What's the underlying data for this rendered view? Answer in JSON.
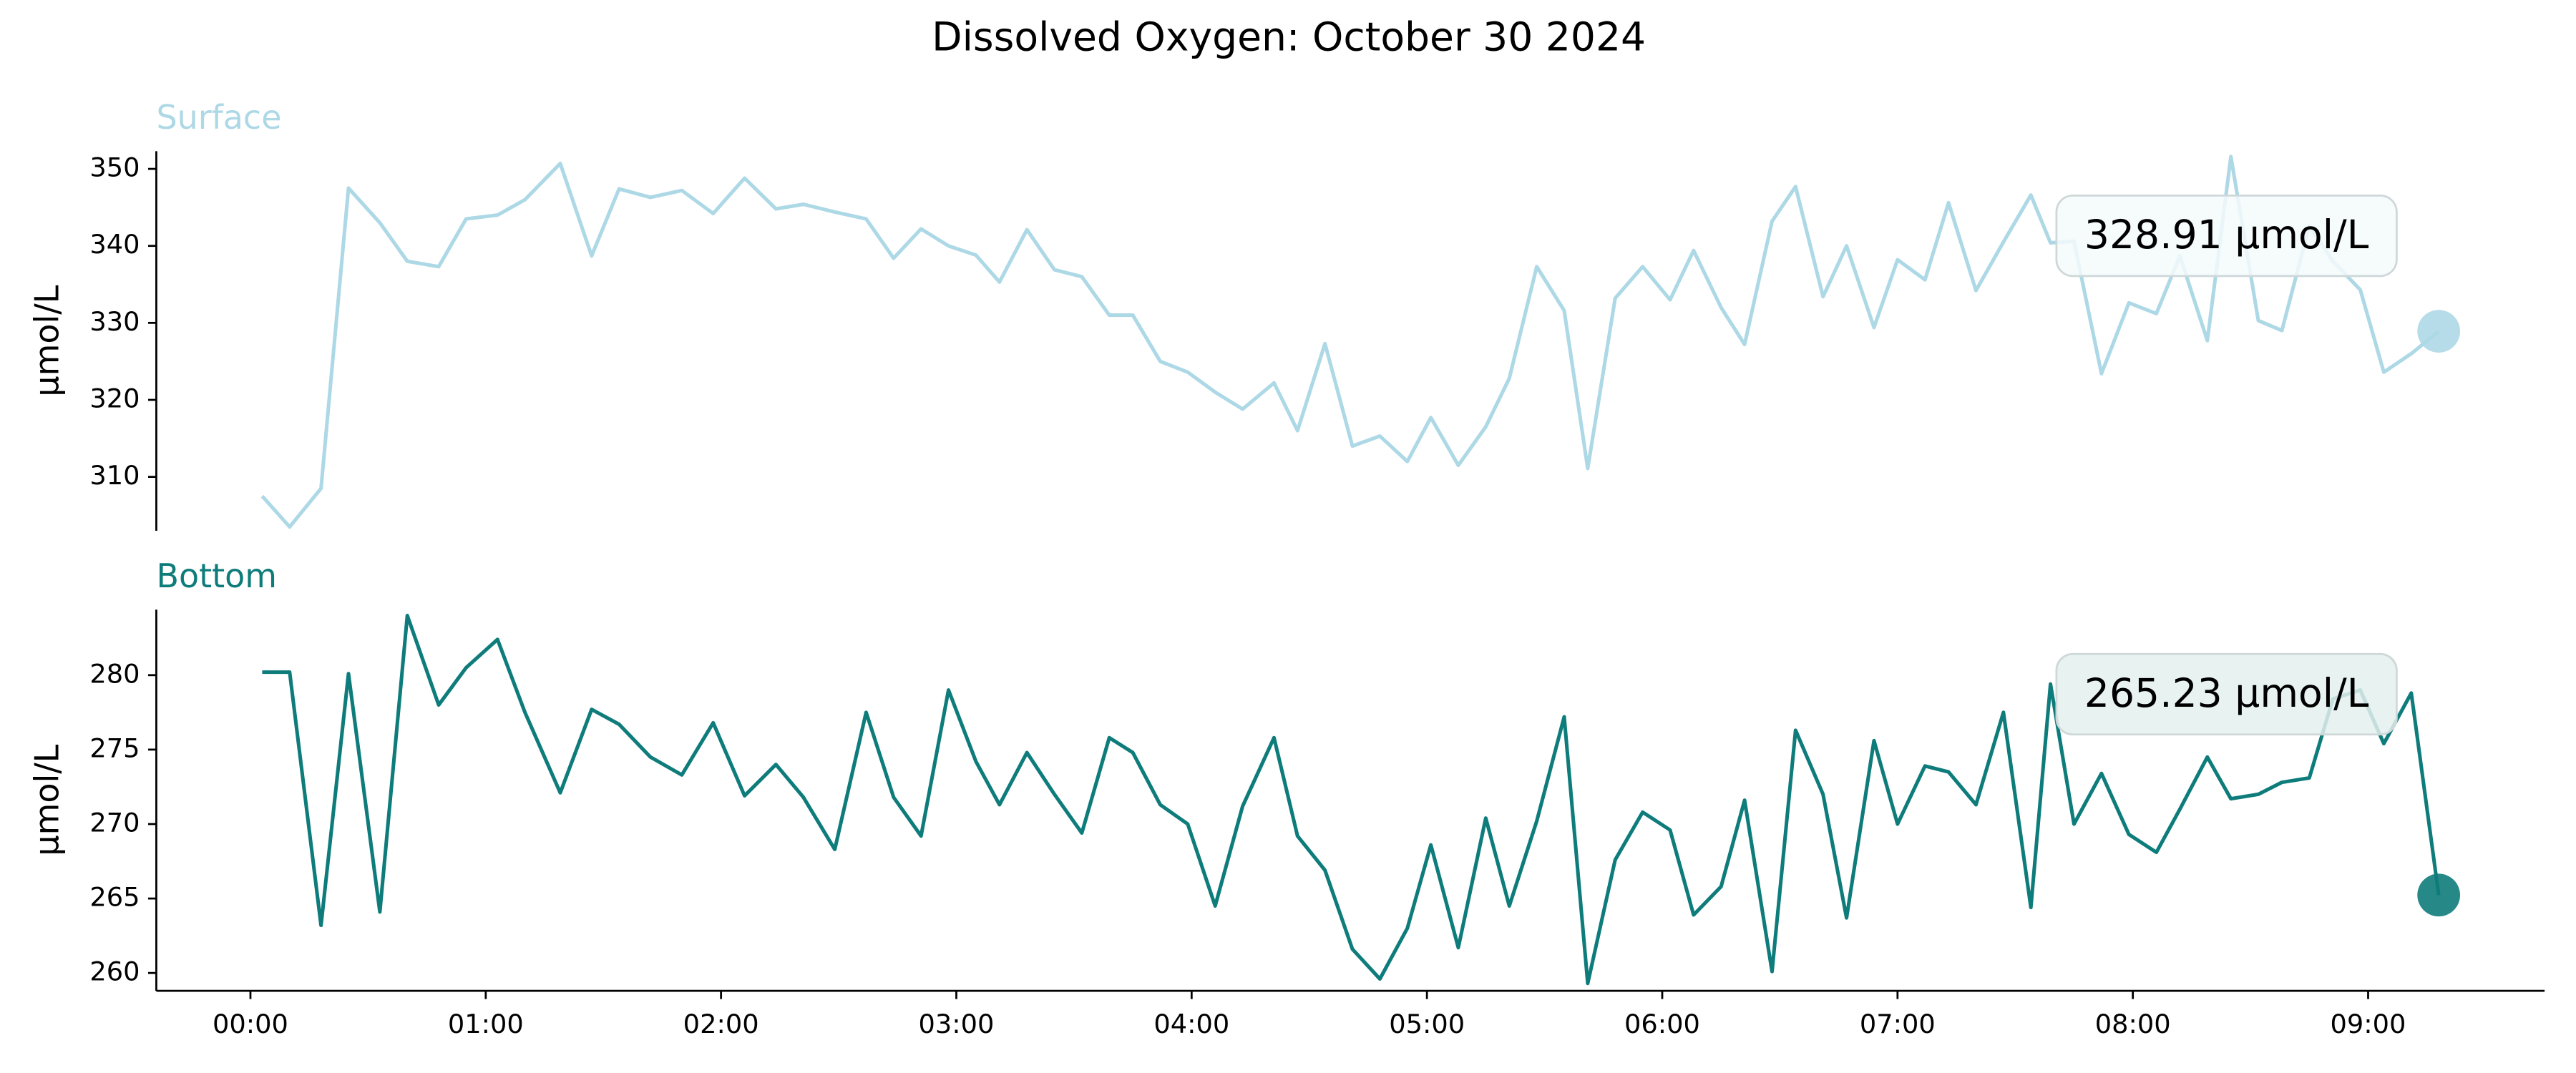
{
  "title": "Dissolved Oxygen: October 30 2024",
  "chart_data": [
    {
      "type": "line",
      "title": "Surface",
      "ylabel": "µmol/L",
      "color": "#add8e6",
      "annotation_fill": "#f4fafc",
      "x": [
        3,
        10,
        18,
        25,
        33,
        40,
        48,
        55,
        63,
        70,
        79,
        87,
        94,
        102,
        110,
        118,
        126,
        134,
        141,
        149,
        157,
        164,
        171,
        178,
        185,
        191,
        198,
        205,
        212,
        219,
        225,
        232,
        239,
        246,
        253,
        261,
        267,
        274,
        281,
        288,
        295,
        301,
        308,
        315,
        321,
        328,
        335,
        341,
        348,
        355,
        362,
        368,
        375,
        381,
        388,
        394,
        401,
        407,
        414,
        420,
        427,
        433,
        440,
        447,
        454,
        459,
        465,
        472,
        479,
        486,
        492,
        499,
        505,
        512,
        518,
        525,
        531,
        538,
        544,
        551,
        558
      ],
      "values": [
        307.5,
        303.5,
        308.5,
        347.5,
        343,
        338,
        337.3,
        343.5,
        344,
        346,
        350.7,
        338.7,
        347.4,
        346.3,
        347.2,
        344.2,
        348.8,
        344.8,
        345.4,
        344.4,
        343.5,
        338.4,
        342.2,
        340,
        338.8,
        335.3,
        342.1,
        336.9,
        336,
        331,
        331,
        325,
        323.6,
        321,
        318.8,
        322.2,
        316,
        327.3,
        314,
        315.3,
        312,
        317.7,
        311.5,
        316.5,
        322.8,
        337.3,
        331.6,
        311.1,
        333.2,
        337.3,
        333,
        339.4,
        332,
        327.2,
        343.2,
        347.7,
        333.4,
        340,
        329.4,
        338.2,
        335.6,
        345.6,
        334.2,
        340.5,
        346.6,
        340.4,
        340.6,
        323.4,
        332.6,
        331.2,
        338.7,
        327.7,
        351.6,
        330.3,
        329,
        342.6,
        338,
        334.3,
        323.6,
        326,
        328.91
      ],
      "last_label": "328.91 µmol/L",
      "xlim": [
        -24,
        585
      ],
      "ylim": [
        303,
        352.3
      ],
      "yticks": [
        310,
        320,
        330,
        340,
        350
      ]
    },
    {
      "type": "line",
      "title": "Bottom",
      "ylabel": "µmol/L",
      "color": "#0e7c7b",
      "annotation_fill": "#e3f0ef",
      "x": [
        3,
        10,
        18,
        25,
        33,
        40,
        48,
        55,
        63,
        70,
        79,
        87,
        94,
        102,
        110,
        118,
        126,
        134,
        141,
        149,
        157,
        164,
        171,
        178,
        185,
        191,
        198,
        205,
        212,
        219,
        225,
        232,
        239,
        246,
        253,
        261,
        267,
        274,
        281,
        288,
        295,
        301,
        308,
        315,
        321,
        328,
        335,
        341,
        348,
        355,
        362,
        368,
        375,
        381,
        388,
        394,
        401,
        407,
        414,
        420,
        427,
        433,
        440,
        447,
        454,
        459,
        465,
        472,
        479,
        486,
        492,
        499,
        505,
        512,
        518,
        525,
        531,
        538,
        544,
        551,
        558
      ],
      "values": [
        280.2,
        280.2,
        263.2,
        280.1,
        264.1,
        284,
        278,
        280.5,
        282.4,
        277.5,
        272.1,
        277.7,
        276.7,
        274.5,
        273.3,
        276.8,
        271.9,
        274,
        271.8,
        268.3,
        277.5,
        271.8,
        269.2,
        279,
        274.2,
        271.3,
        274.8,
        272,
        269.4,
        275.8,
        274.8,
        271.3,
        270,
        264.5,
        271.2,
        275.8,
        269.2,
        266.9,
        261.6,
        259.6,
        263,
        268.6,
        261.7,
        270.4,
        264.5,
        270.2,
        277.2,
        259.3,
        267.6,
        270.8,
        269.6,
        263.9,
        265.8,
        271.6,
        260.1,
        276.3,
        272,
        263.7,
        275.6,
        270,
        273.9,
        273.5,
        271.3,
        277.5,
        264.4,
        279.4,
        270,
        273.4,
        269.3,
        268.1,
        271,
        274.5,
        271.7,
        272,
        272.8,
        273.1,
        278.4,
        279,
        275.4,
        278.8,
        265.23
      ],
      "last_label": "265.23 µmol/L",
      "xlim": [
        -24,
        585
      ],
      "ylim": [
        258.8,
        284.4
      ],
      "yticks": [
        260,
        265,
        270,
        275,
        280
      ],
      "xticks": [
        {
          "value": 0,
          "label": "00:00"
        },
        {
          "value": 60,
          "label": "01:00"
        },
        {
          "value": 120,
          "label": "02:00"
        },
        {
          "value": 180,
          "label": "03:00"
        },
        {
          "value": 240,
          "label": "04:00"
        },
        {
          "value": 300,
          "label": "05:00"
        },
        {
          "value": 360,
          "label": "06:00"
        },
        {
          "value": 420,
          "label": "07:00"
        },
        {
          "value": 480,
          "label": "08:00"
        },
        {
          "value": 540,
          "label": "09:00"
        }
      ]
    }
  ]
}
